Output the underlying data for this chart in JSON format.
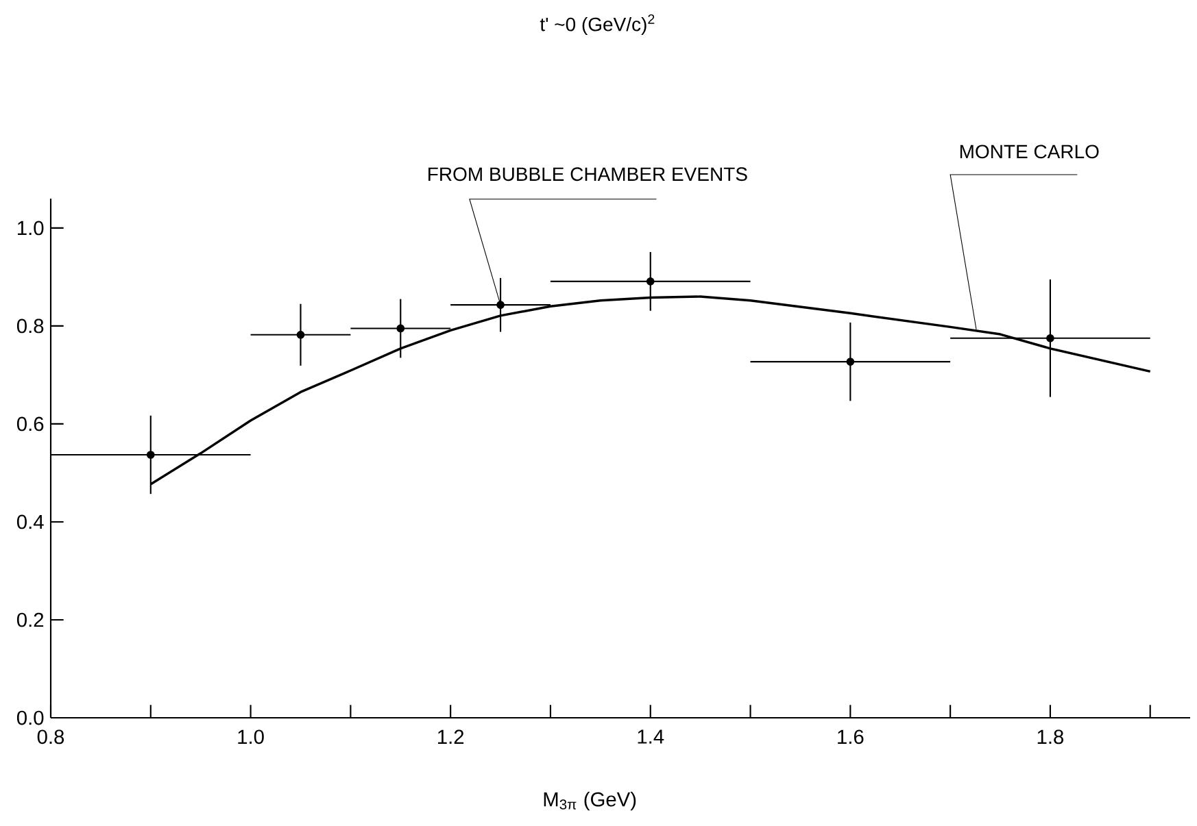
{
  "chart_data": {
    "type": "scatter",
    "title": "t' ~0 (GeV/c)$^{2}$",
    "xlabel": "M$_{3π}$  (GeV)",
    "xlim": [
      0.8,
      1.94
    ],
    "ylim": [
      0,
      1.06
    ],
    "xticks": [
      0.8,
      {
        "value": 0.9,
        "label": null
      },
      {
        "value": 1.0,
        "label": "1.0"
      },
      {
        "value": 1.1,
        "label": null
      },
      1.2,
      {
        "value": 1.3,
        "label": null
      },
      1.4,
      {
        "value": 1.5,
        "label": null
      },
      1.6,
      {
        "value": 1.7,
        "label": null
      },
      1.8,
      {
        "value": 1.9,
        "label": null
      }
    ],
    "yticks": [
      {
        "value": 0,
        "label": "0.0"
      },
      0.2,
      0.4,
      0.6,
      0.8,
      {
        "value": 1.0,
        "label": "1.0"
      }
    ],
    "series": [
      {
        "color": "#000000",
        "x": [
          0.9,
          1.05,
          1.15,
          1.25,
          1.4,
          1.6,
          1.8
        ],
        "values": [
          0.537,
          0.782,
          0.795,
          0.843,
          0.891,
          0.727,
          0.775
        ],
        "errors": [
          0.08,
          0.063,
          0.06,
          0.055,
          0.06,
          0.08,
          0.12
        ],
        "xerrors": [
          0.1,
          0.05,
          0.05,
          0.05,
          0.1,
          0.1,
          0.1
        ]
      },
      {
        "type": "line",
        "color": "#000000",
        "x": [
          0.9,
          0.95,
          1.0,
          1.05,
          1.1,
          1.15,
          1.2,
          1.25,
          1.3,
          1.35,
          1.4,
          1.45,
          1.5,
          1.6,
          1.7,
          1.75,
          1.8,
          1.9
        ],
        "values": [
          0.477,
          0.54,
          0.607,
          0.665,
          0.709,
          0.754,
          0.791,
          0.821,
          0.84,
          0.852,
          0.858,
          0.86,
          0.852,
          0.826,
          0.798,
          0.783,
          0.754,
          0.707
        ]
      }
    ],
    "annotations": [
      {
        "text": "FROM BUBBLE CHAMBER EVENTS",
        "x": 1.25,
        "y": 0.843
      },
      {
        "text": "MONTE CARLO",
        "x": 1.726,
        "y": 0.793
      }
    ]
  }
}
